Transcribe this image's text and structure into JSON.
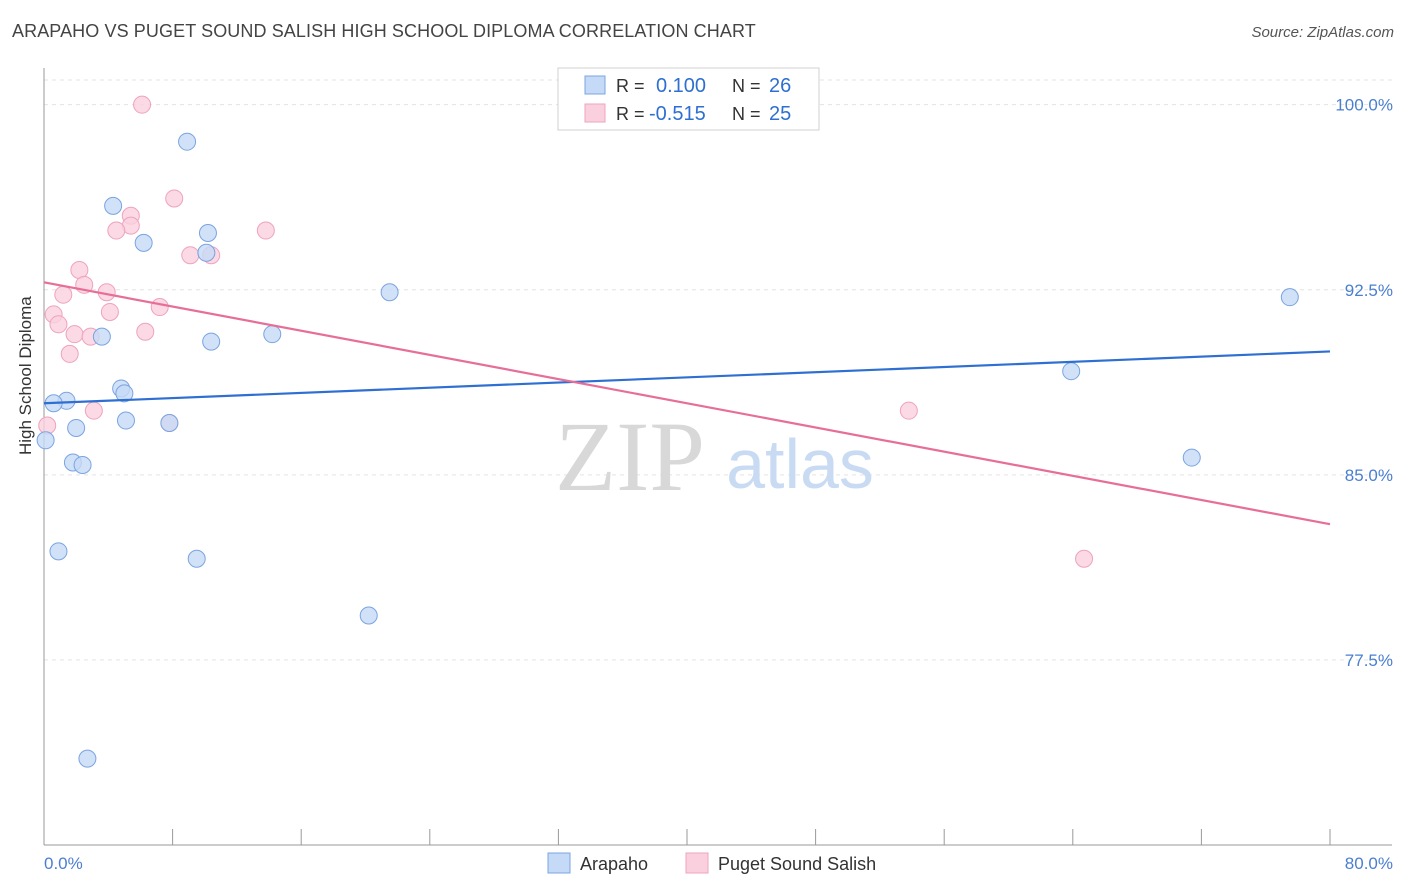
{
  "header": {
    "title": "ARAPAHO VS PUGET SOUND SALISH HIGH SCHOOL DIPLOMA CORRELATION CHART",
    "source": "Source: ZipAtlas.com"
  },
  "watermark": {
    "zip": "ZIP",
    "atlas": "atlas"
  },
  "legend_top": {
    "rows": [
      {
        "r_label": "R =",
        "r_value": "0.100",
        "n_label": "N =",
        "n_value": "26"
      },
      {
        "r_label": "R =",
        "r_value": "-0.515",
        "n_label": "N =",
        "n_value": "25"
      }
    ]
  },
  "chart_data": {
    "type": "scatter",
    "title": "ARAPAHO VS PUGET SOUND SALISH HIGH SCHOOL DIPLOMA CORRELATION CHART",
    "xlabel": "",
    "ylabel": "High School Diploma",
    "xlim": [
      0,
      80
    ],
    "ylim": [
      70.0,
      101.0
    ],
    "x_tick_labels": [
      "0.0%",
      "80.0%"
    ],
    "y_ticks": [
      77.5,
      85.0,
      92.5,
      100.0
    ],
    "y_tick_labels": [
      "77.5%",
      "85.0%",
      "92.5%",
      "100.0%"
    ],
    "grid": true,
    "colors": {
      "arapaho": "#8fb6ec",
      "salish": "#f4a9c2",
      "arapaho_line": "#2e6fd1",
      "salish_line": "#e76e98"
    },
    "series": [
      {
        "name": "Arapaho",
        "points": [
          [
            8.9,
            98.5
          ],
          [
            4.3,
            95.9
          ],
          [
            6.2,
            94.4
          ],
          [
            10.2,
            94.8
          ],
          [
            10.1,
            94.0
          ],
          [
            21.5,
            92.4
          ],
          [
            77.5,
            92.2
          ],
          [
            3.6,
            90.6
          ],
          [
            10.4,
            90.4
          ],
          [
            14.2,
            90.7
          ],
          [
            63.9,
            89.2
          ],
          [
            4.8,
            88.5
          ],
          [
            5.0,
            88.3
          ],
          [
            1.4,
            88.0
          ],
          [
            0.6,
            87.9
          ],
          [
            5.1,
            87.2
          ],
          [
            2.0,
            86.9
          ],
          [
            7.8,
            87.1
          ],
          [
            0.1,
            86.4
          ],
          [
            1.8,
            85.5
          ],
          [
            2.4,
            85.4
          ],
          [
            71.4,
            85.7
          ],
          [
            0.9,
            81.9
          ],
          [
            9.5,
            81.6
          ],
          [
            20.2,
            79.3
          ],
          [
            2.7,
            73.5
          ]
        ],
        "trend": {
          "x": [
            0,
            80
          ],
          "y": [
            87.9,
            90.0
          ]
        }
      },
      {
        "name": "Puget Sound Salish",
        "points": [
          [
            6.1,
            100.0
          ],
          [
            8.1,
            96.2
          ],
          [
            5.4,
            95.5
          ],
          [
            5.4,
            95.1
          ],
          [
            4.5,
            94.9
          ],
          [
            13.8,
            94.9
          ],
          [
            9.1,
            93.9
          ],
          [
            10.4,
            93.9
          ],
          [
            2.2,
            93.3
          ],
          [
            2.5,
            92.7
          ],
          [
            1.2,
            92.3
          ],
          [
            3.9,
            92.4
          ],
          [
            7.2,
            91.8
          ],
          [
            0.6,
            91.5
          ],
          [
            4.1,
            91.6
          ],
          [
            0.9,
            91.1
          ],
          [
            1.9,
            90.7
          ],
          [
            2.9,
            90.6
          ],
          [
            6.3,
            90.8
          ],
          [
            1.6,
            89.9
          ],
          [
            3.1,
            87.6
          ],
          [
            7.8,
            87.1
          ],
          [
            0.2,
            87.0
          ],
          [
            53.8,
            87.6
          ],
          [
            64.7,
            81.6
          ]
        ],
        "trend": {
          "x": [
            0,
            80
          ],
          "y": [
            92.8,
            83.0
          ]
        }
      }
    ]
  },
  "legend_bottom": {
    "items": [
      {
        "label": "Arapaho"
      },
      {
        "label": "Puget Sound Salish"
      }
    ]
  }
}
